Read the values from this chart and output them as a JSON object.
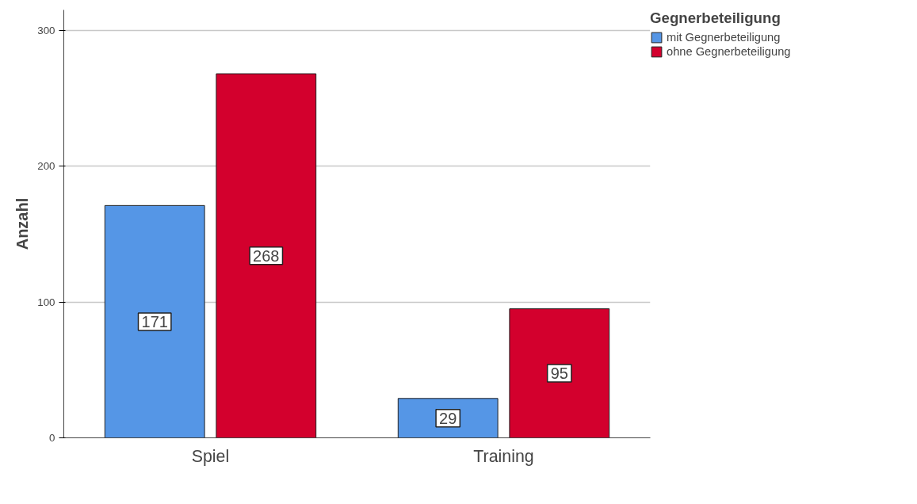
{
  "chart_data": {
    "type": "bar",
    "ylabel": "Anzahl",
    "legend_title": "Gegnerbeteiligung",
    "categories": [
      "Spiel",
      "Training"
    ],
    "series": [
      {
        "name": "mit Gegnerbeteiligung",
        "color": "#5596e6",
        "values": [
          171,
          29
        ]
      },
      {
        "name": "ohne Gegnerbeteiligung",
        "color": "#d3002d",
        "values": [
          268,
          95
        ]
      }
    ],
    "ylim": [
      0,
      315
    ],
    "yticks": [
      0,
      100,
      200,
      300
    ],
    "grid": "y",
    "legend": "top right",
    "data_labels": true
  }
}
